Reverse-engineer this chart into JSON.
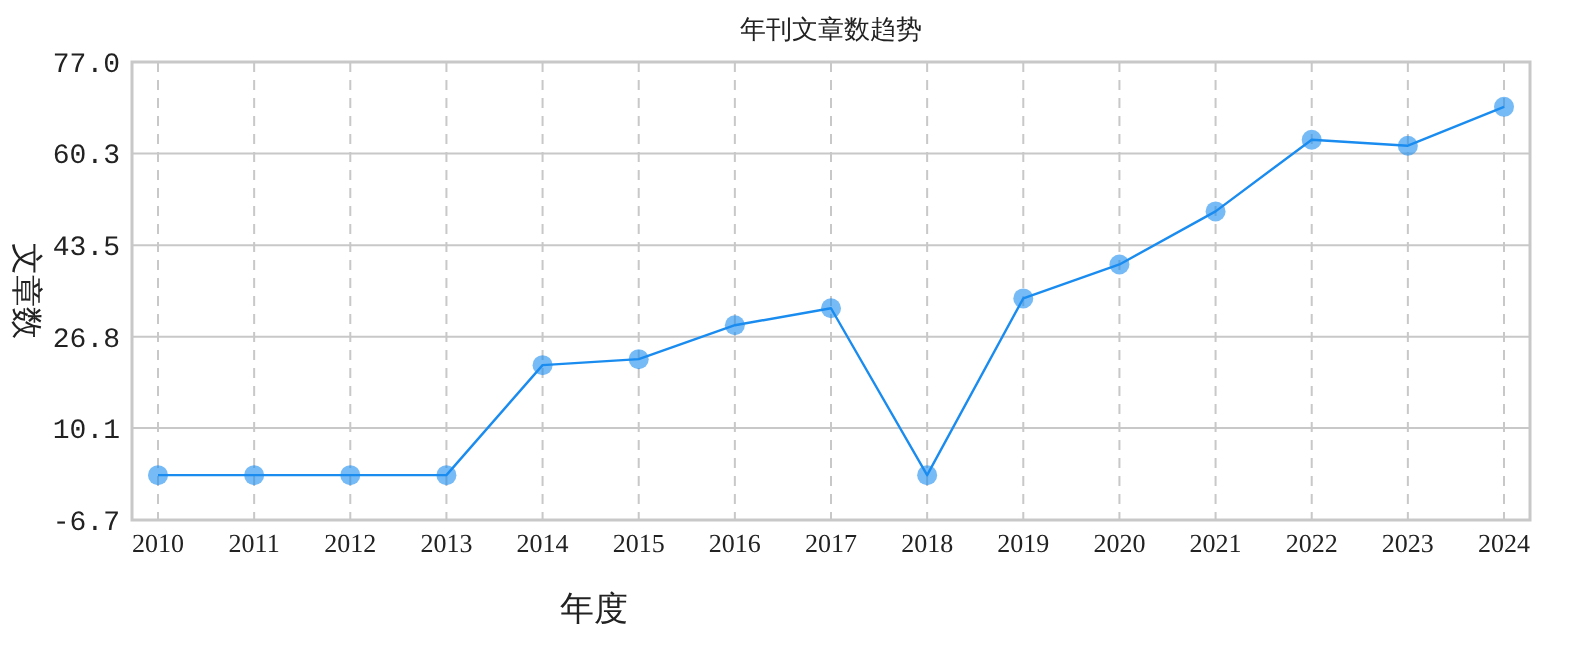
{
  "chart_data": {
    "type": "line",
    "title": "年刊文章数趋势",
    "xlabel": "年度",
    "ylabel": "文章数",
    "categories": [
      "2010",
      "2011",
      "2012",
      "2013",
      "2014",
      "2015",
      "2016",
      "2017",
      "2018",
      "2019",
      "2020",
      "2021",
      "2022",
      "2023",
      "2024"
    ],
    "series": [
      {
        "color": "#1a8cf0",
        "values": [
          1.5,
          1.5,
          1.5,
          1.5,
          21.6,
          22.7,
          28.9,
          32.0,
          1.5,
          33.8,
          40.0,
          49.7,
          62.8,
          61.7,
          68.8
        ]
      }
    ],
    "ylim": [
      -6.7,
      77.0
    ],
    "yticks": [
      {
        "value": -6.7,
        "label": "-6.7"
      },
      {
        "value": 10.1,
        "label": "10.1"
      },
      {
        "value": 26.8,
        "label": "26.8"
      },
      {
        "value": 43.5,
        "label": "43.5"
      },
      {
        "value": 60.3,
        "label": "60.3"
      },
      {
        "value": 77.0,
        "label": "77.0"
      }
    ],
    "grid": true,
    "marker": "circle",
    "line_style": "solid"
  }
}
